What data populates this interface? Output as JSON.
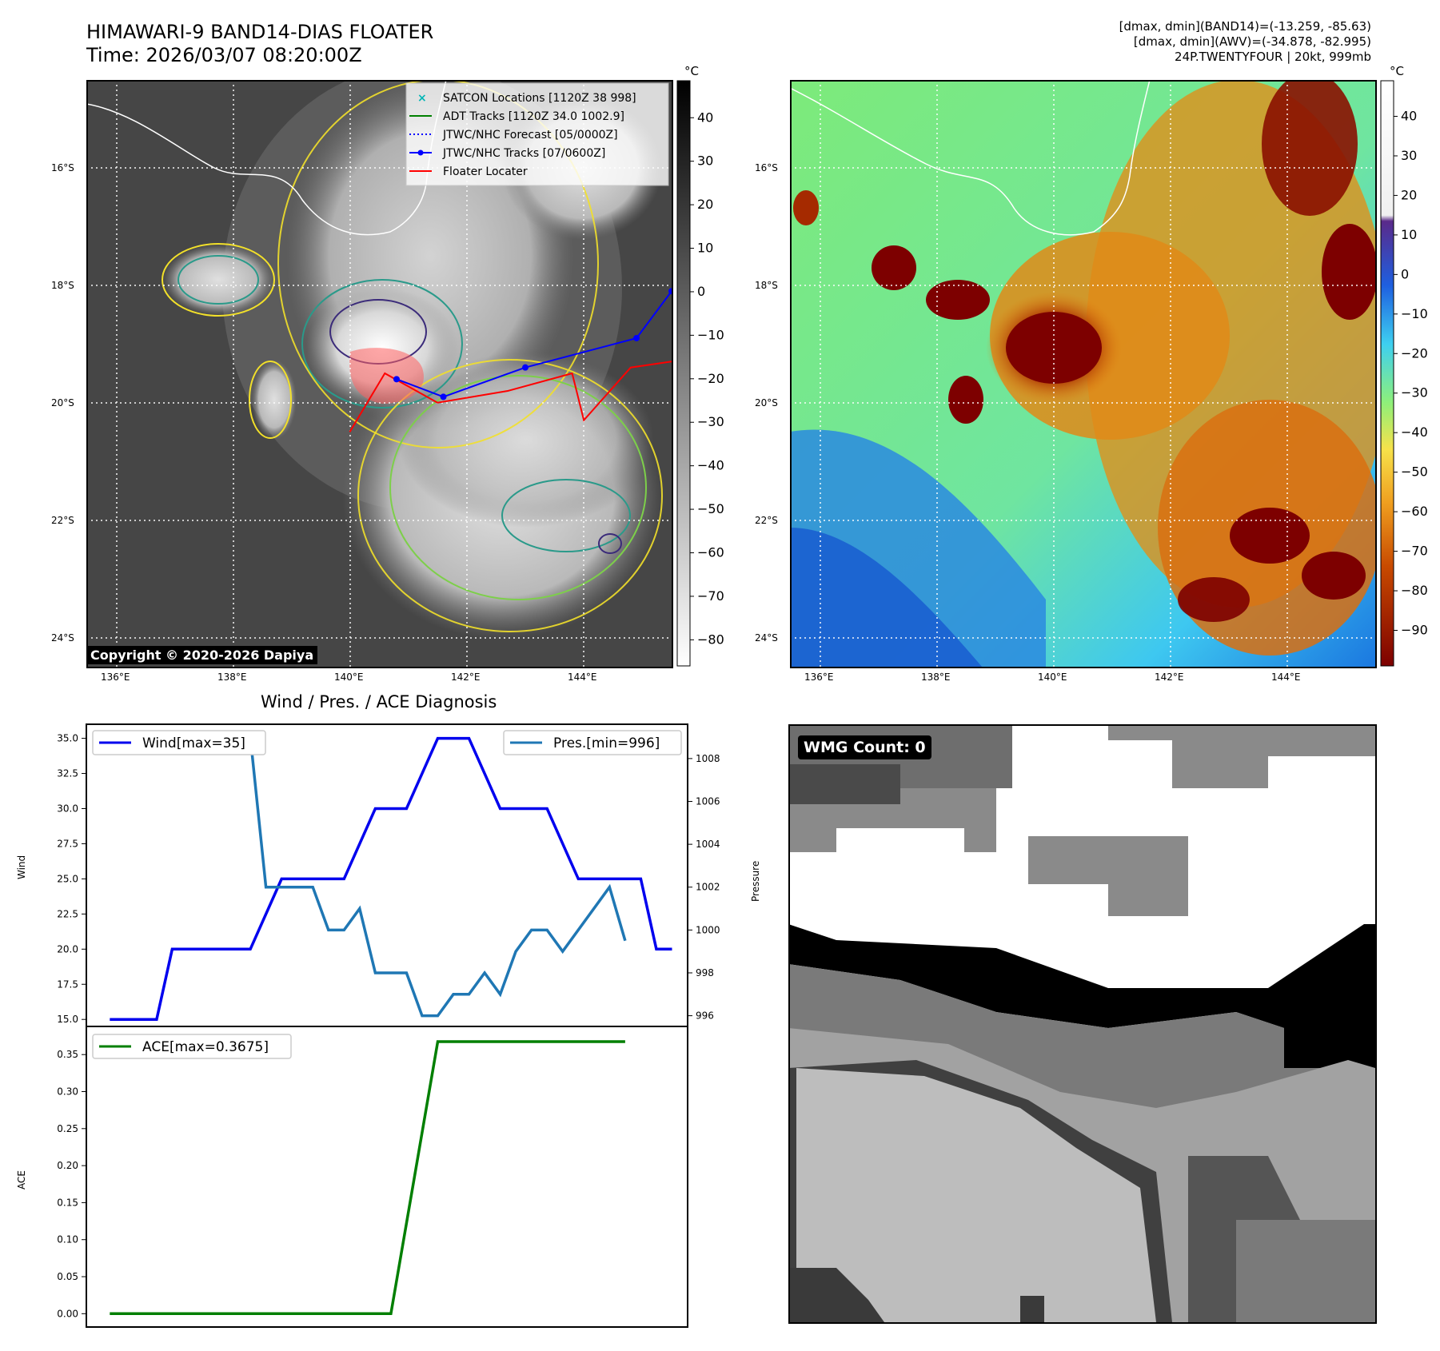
{
  "header": {
    "title_line1": "HIMAWARI-9 BAND14-DIAS FLOATER",
    "title_line2": "Time: 2026/03/07 08:20:00Z",
    "info_line1": "[dmax, dmin](BAND14)=(-13.259, -85.63)",
    "info_line2": "[dmax, dmin](AWV)=(-34.878, -82.995)",
    "info_line3": "24P.TWENTYFOUR | 20kt, 999mb"
  },
  "maps": {
    "lat_labels": [
      "16°S",
      "18°S",
      "20°S",
      "22°S",
      "24°S"
    ],
    "lon_labels": [
      "136°E",
      "138°E",
      "140°E",
      "142°E",
      "144°E"
    ],
    "unit": "°C",
    "ir_colorbar_ticks": [
      "40",
      "30",
      "20",
      "10",
      "0",
      "−10",
      "−20",
      "−30",
      "−40",
      "−50",
      "−60",
      "−70",
      "−80"
    ],
    "awv_colorbar_ticks": [
      "40",
      "30",
      "20",
      "10",
      "0",
      "−10",
      "−20",
      "−30",
      "−40",
      "−50",
      "−60",
      "−70",
      "−80",
      "−90"
    ],
    "copyright": "Copyright © 2020-2026 Dapiya",
    "legend": [
      {
        "label": "SATCON Locations [1120Z 38 998]",
        "color": "#00b5b5"
      },
      {
        "label": "ADT Tracks [1120Z 34.0 1002.9]",
        "color": "#008000"
      },
      {
        "label": "JTWC/NHC Forecast [05/0000Z]",
        "color": "#0000ff"
      },
      {
        "label": "JTWC/NHC Tracks [07/0600Z]",
        "color": "#0000ff"
      },
      {
        "label": "Floater Locater",
        "color": "#ff0000"
      }
    ],
    "track_jtwc": [
      [
        140.8,
        19.6
      ],
      [
        141.6,
        19.9
      ],
      [
        143.0,
        19.4
      ],
      [
        144.9,
        18.9
      ],
      [
        145.5,
        18.1
      ]
    ],
    "floater_locater": [
      [
        140.0,
        20.5
      ],
      [
        140.6,
        19.5
      ],
      [
        141.5,
        20.0
      ],
      [
        142.7,
        19.8
      ],
      [
        143.8,
        19.5
      ],
      [
        144.0,
        20.3
      ],
      [
        144.8,
        19.4
      ],
      [
        145.5,
        19.3
      ]
    ],
    "lon_range": [
      135.5,
      145.5
    ],
    "lat_range": [
      14.5,
      24.5
    ]
  },
  "diagnosis": {
    "title": "Wind / Pres. / ACE Diagnosis",
    "wind_label": "Wind",
    "pressure_label": "Pressure",
    "ace_label": "ACE",
    "wind_legend": "Wind[max=35]",
    "pres_legend": "Pres.[min=996]",
    "ace_legend": "ACE[max=0.3675]"
  },
  "wmg": {
    "label": "WMG Count: 0"
  },
  "chart_data": [
    {
      "type": "line",
      "name": "wind_pressure",
      "x": [
        0,
        1,
        2,
        3,
        4,
        5,
        6,
        7,
        8,
        9,
        10,
        11,
        12,
        13,
        14,
        15,
        16,
        17,
        18,
        19,
        20,
        21,
        22,
        23,
        24,
        25,
        26,
        27,
        28,
        29,
        30,
        31,
        32,
        33,
        34,
        35,
        36,
        37,
        38,
        39,
        40,
        41,
        42,
        43,
        44,
        45,
        46,
        47,
        48,
        49,
        50,
        51,
        52,
        53,
        54,
        55,
        56,
        57,
        58,
        59,
        60,
        61,
        62,
        63,
        64,
        65,
        66,
        67,
        68,
        69,
        70,
        71,
        72,
        73,
        74,
        75,
        76,
        77,
        78,
        79,
        80,
        81,
        82,
        83,
        84,
        85,
        86,
        87,
        88,
        89,
        90,
        91,
        92,
        93,
        94,
        95,
        96,
        97,
        98,
        99,
        100,
        101,
        102,
        103,
        104,
        105,
        106,
        107,
        108,
        109,
        110,
        111,
        112,
        113,
        114,
        115,
        116,
        117,
        118,
        119,
        120,
        121,
        122,
        123,
        124,
        125,
        126,
        127,
        128,
        129,
        130,
        131,
        132,
        133,
        134,
        135,
        136,
        137,
        138,
        139,
        140,
        141,
        142,
        143,
        144,
        145,
        146,
        147,
        148,
        149,
        150,
        151,
        152,
        153,
        154,
        155,
        156,
        157,
        158,
        159,
        160,
        161,
        162,
        163,
        164,
        165,
        166,
        167,
        168,
        169,
        170,
        171,
        172,
        173,
        174,
        175,
        176,
        177,
        178,
        179,
        180,
        181,
        182,
        183,
        184,
        185,
        186,
        187,
        188,
        189,
        190,
        191,
        192,
        193,
        194,
        195,
        196,
        197,
        198,
        199,
        200,
        201,
        202,
        203,
        204,
        205,
        206,
        207,
        208,
        209,
        210,
        211,
        212,
        213,
        214,
        215,
        216,
        217,
        218,
        219,
        220,
        221,
        222,
        223,
        224,
        225,
        226,
        227,
        228,
        229,
        230,
        231,
        232,
        233,
        234,
        235,
        236,
        237,
        238,
        239,
        240,
        241,
        242,
        243,
        244,
        245,
        246,
        247,
        248,
        249,
        250,
        251,
        252,
        253,
        254,
        255,
        256,
        257,
        258,
        259,
        260,
        261,
        262,
        263,
        264,
        265,
        266,
        267,
        268,
        269,
        270,
        271,
        272,
        273,
        274,
        275,
        276,
        277,
        278,
        279,
        280,
        281,
        282,
        283,
        284,
        285,
        286,
        287,
        288,
        289,
        290,
        291,
        292,
        293,
        294,
        295,
        296,
        297,
        298,
        299,
        300,
        301,
        302,
        303,
        304,
        305,
        306,
        307,
        308,
        309,
        310,
        311,
        312,
        313,
        314,
        315,
        316,
        317,
        318,
        319,
        320,
        321,
        322,
        323,
        324,
        325,
        326,
        327,
        328,
        329,
        330,
        331,
        332,
        333,
        334,
        335,
        336,
        337,
        338,
        339,
        340,
        341,
        342,
        343,
        344,
        345,
        346,
        347,
        348,
        349,
        350,
        351,
        352,
        353,
        354,
        355,
        356,
        357,
        358,
        359,
        360,
        361,
        362,
        363,
        364,
        365,
        366,
        367,
        368,
        369,
        370,
        371,
        372,
        373,
        374,
        375,
        376,
        377,
        378,
        379,
        380,
        381,
        382,
        383,
        384,
        385,
        386,
        387,
        388,
        389,
        390,
        391,
        392,
        393,
        394,
        395,
        396,
        397,
        398,
        399,
        400,
        401,
        402,
        403,
        404,
        405,
        406,
        407,
        408,
        409,
        410,
        411,
        412,
        413,
        414,
        415,
        416,
        417,
        418,
        419,
        420,
        421,
        422,
        423,
        424,
        425,
        426,
        427,
        428,
        429,
        430,
        431,
        432,
        433,
        434,
        435,
        436,
        437,
        438,
        439,
        440,
        441,
        442,
        443,
        444,
        445,
        446,
        447,
        448,
        449,
        450,
        451,
        452,
        453,
        454,
        455,
        456,
        457,
        458,
        459,
        460,
        461,
        462,
        463,
        464,
        465,
        466,
        467,
        468,
        469,
        470,
        471,
        472,
        473,
        474,
        475,
        476,
        477,
        478,
        479,
        480,
        481,
        482,
        483,
        484,
        485,
        486,
        487,
        488,
        489,
        490,
        491,
        492,
        493,
        494,
        495,
        496,
        497,
        498,
        499,
        500,
        501,
        502,
        503,
        504,
        505,
        506,
        507,
        508,
        509,
        510,
        511,
        512,
        513,
        514,
        515,
        516,
        517,
        518,
        519,
        520,
        521,
        522,
        523,
        524,
        525,
        526,
        527,
        528,
        529,
        530,
        531,
        532,
        533,
        534,
        535,
        536,
        537,
        538,
        539,
        540,
        541,
        542,
        543,
        544,
        545,
        546,
        547,
        548,
        549,
        550,
        551,
        552,
        553,
        554,
        555,
        556,
        557,
        558,
        559,
        560,
        561,
        562,
        563,
        564,
        565,
        566,
        567,
        568,
        569,
        570,
        571,
        572,
        573,
        574,
        575,
        576,
        577,
        578,
        579,
        580,
        581,
        582,
        583,
        584,
        585,
        586,
        587,
        588,
        589,
        590,
        591,
        592,
        593,
        594,
        595,
        596,
        597,
        598,
        599,
        600,
        601,
        602,
        603,
        604,
        605,
        606,
        607,
        608,
        609,
        610,
        611,
        612,
        613,
        614,
        615,
        616,
        617,
        618,
        619,
        620,
        621,
        622,
        623,
        624,
        625,
        626,
        627,
        628,
        629,
        630,
        631,
        632,
        633,
        634,
        635,
        636,
        637,
        638,
        639,
        640,
        641,
        642,
        643,
        644,
        645,
        646,
        647,
        648,
        649,
        650,
        651,
        652,
        653,
        654,
        655,
        656,
        657,
        658,
        659,
        660,
        661,
        662,
        663,
        664,
        665,
        666,
        667,
        668,
        669,
        670,
        671,
        672,
        673,
        674,
        675,
        676,
        677,
        678,
        679,
        680,
        681,
        682,
        683,
        684,
        685,
        686,
        687,
        688,
        689,
        690,
        691,
        692,
        693,
        694,
        695,
        696,
        697,
        698,
        699,
        700,
        701,
        702,
        703,
        704,
        705,
        706,
        707,
        708,
        709,
        710,
        711,
        712,
        713,
        714,
        715,
        716,
        717,
        718,
        719,
        720
      ],
      "series": [
        {
          "name": "Wind",
          "axis": "left",
          "color": "#0000ee",
          "points": [
            [
              0,
              15
            ],
            [
              3,
              15
            ],
            [
              4,
              20
            ],
            [
              9,
              20
            ],
            [
              11,
              25
            ],
            [
              15,
              25
            ],
            [
              17,
              30
            ],
            [
              19,
              30
            ],
            [
              21,
              35
            ],
            [
              23,
              35
            ],
            [
              25,
              30
            ],
            [
              28,
              30
            ],
            [
              30,
              25
            ],
            [
              34,
              25
            ],
            [
              35,
              20
            ],
            [
              36,
              20
            ]
          ]
        },
        {
          "name": "Pres.",
          "axis": "right",
          "color": "#1f77b4",
          "points": [
            [
              0,
              1009
            ],
            [
              9,
              1009
            ],
            [
              10,
              1002
            ],
            [
              13,
              1002
            ],
            [
              14,
              1000
            ],
            [
              15,
              1000
            ],
            [
              16,
              1001
            ],
            [
              17,
              998
            ],
            [
              19,
              998
            ],
            [
              20,
              996
            ],
            [
              21,
              996
            ],
            [
              22,
              997
            ],
            [
              23,
              997
            ],
            [
              24,
              998
            ],
            [
              25,
              997
            ],
            [
              26,
              999
            ],
            [
              27,
              1000
            ],
            [
              28,
              1000
            ],
            [
              29,
              999
            ],
            [
              32,
              1002
            ],
            [
              33,
              999.5
            ]
          ]
        }
      ],
      "ylim_left": [
        14.5,
        36
      ],
      "ylim_right": [
        995.5,
        1009.6
      ],
      "left_ticks": [
        15.0,
        17.5,
        20.0,
        22.5,
        25.0,
        27.5,
        30.0,
        32.5,
        35.0
      ],
      "right_ticks": [
        996,
        998,
        1000,
        1002,
        1004,
        1006,
        1008
      ],
      "ylabel": "Wind",
      "ylabel_right": "Pressure",
      "legend": "top-left / top-right"
    },
    {
      "type": "line",
      "name": "ace",
      "series": [
        {
          "name": "ACE",
          "color": "#007f00",
          "points": [
            [
              0,
              0
            ],
            [
              18,
              0
            ],
            [
              21,
              0.3675
            ],
            [
              33,
              0.3675
            ]
          ]
        }
      ],
      "ylim": [
        -0.018,
        0.388
      ],
      "ticks": [
        0.0,
        0.05,
        0.1,
        0.15,
        0.2,
        0.25,
        0.3,
        0.35
      ],
      "ylabel": "ACE",
      "legend": "top-left"
    }
  ]
}
